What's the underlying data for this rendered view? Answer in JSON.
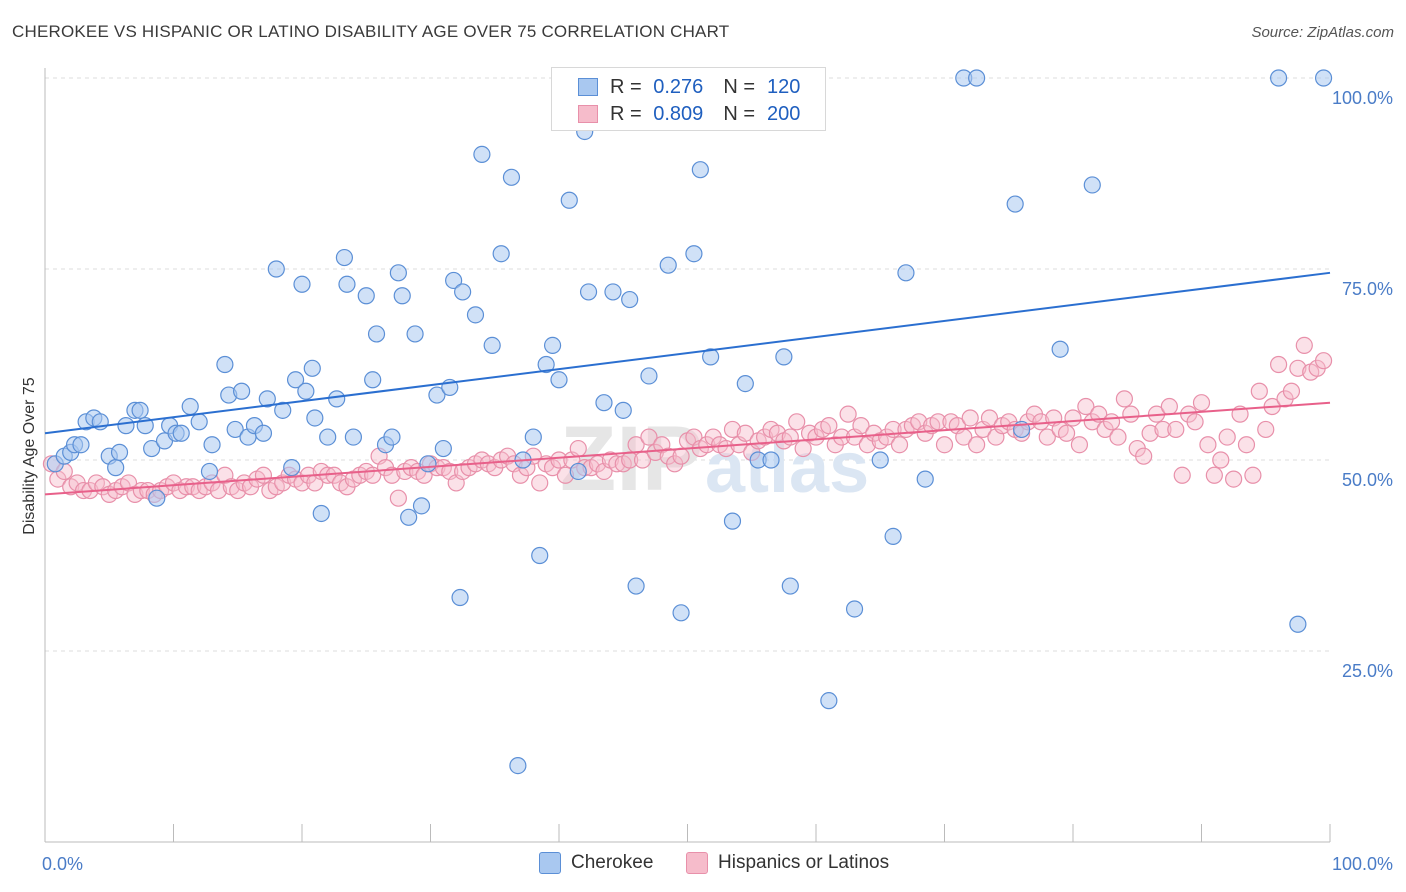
{
  "title": "CHEROKEE VS HISPANIC OR LATINO DISABILITY AGE OVER 75 CORRELATION CHART",
  "source": "Source: ZipAtlas.com",
  "watermark": "ZIPatlas",
  "colors": {
    "cherokee_fill": "#a9c8f0",
    "cherokee_stroke": "#5b8fd6",
    "cherokee_line": "#2b6fd0",
    "hispanic_fill": "#f6bccb",
    "hispanic_stroke": "#e890aa",
    "hispanic_line": "#e8608a",
    "tick_label": "#4a7cc7"
  },
  "legend": {
    "rows": [
      {
        "r_label": "R =",
        "r_value": "0.276",
        "n_label": "N =",
        "n_value": "120"
      },
      {
        "r_label": "R =",
        "r_value": "0.809",
        "n_label": "N =",
        "n_value": "200"
      }
    ]
  },
  "bottom_legend": [
    "Cherokee",
    "Hispanics or Latinos"
  ],
  "chart_data": {
    "type": "scatter",
    "title": "CHEROKEE VS HISPANIC OR LATINO DISABILITY AGE OVER 75 CORRELATION CHART",
    "xlabel": "",
    "ylabel": "Disability Age Over 75",
    "xlim": [
      0,
      100
    ],
    "ylim": [
      0,
      100
    ],
    "x_tick_labels": [
      "0.0%",
      "100.0%"
    ],
    "y_tick_labels": [
      "25.0%",
      "50.0%",
      "75.0%",
      "100.0%"
    ],
    "y_ticks": [
      25,
      50,
      75,
      100
    ],
    "grid": true,
    "legend_position": "top-center",
    "series": [
      {
        "name": "Cherokee",
        "trend": [
          [
            0,
            53.5
          ],
          [
            100,
            74.5
          ]
        ],
        "points": [
          [
            0.8,
            49.5
          ],
          [
            1.5,
            50.5
          ],
          [
            2,
            51
          ],
          [
            2.3,
            52
          ],
          [
            2.8,
            52
          ],
          [
            3.2,
            55
          ],
          [
            3.8,
            55.5
          ],
          [
            4.3,
            55
          ],
          [
            5,
            50.5
          ],
          [
            5.5,
            49
          ],
          [
            5.8,
            51
          ],
          [
            6.3,
            54.5
          ],
          [
            7,
            56.5
          ],
          [
            7.4,
            56.5
          ],
          [
            7.8,
            54.5
          ],
          [
            8.3,
            51.5
          ],
          [
            8.7,
            45
          ],
          [
            9.3,
            52.5
          ],
          [
            9.7,
            54.5
          ],
          [
            10.2,
            53.5
          ],
          [
            10.6,
            53.5
          ],
          [
            11.3,
            57
          ],
          [
            12,
            55
          ],
          [
            12.8,
            48.5
          ],
          [
            13,
            52
          ],
          [
            14,
            62.5
          ],
          [
            14.3,
            58.5
          ],
          [
            14.8,
            54
          ],
          [
            15.3,
            59
          ],
          [
            15.8,
            53
          ],
          [
            16.3,
            54.5
          ],
          [
            17,
            53.5
          ],
          [
            17.3,
            58
          ],
          [
            18,
            75
          ],
          [
            18.5,
            56.5
          ],
          [
            19.2,
            49
          ],
          [
            19.5,
            60.5
          ],
          [
            20,
            73
          ],
          [
            20.3,
            59
          ],
          [
            20.8,
            62
          ],
          [
            21,
            55.5
          ],
          [
            21.5,
            43
          ],
          [
            22,
            53
          ],
          [
            22.7,
            58
          ],
          [
            23.3,
            76.5
          ],
          [
            23.5,
            73
          ],
          [
            24,
            53
          ],
          [
            25,
            71.5
          ],
          [
            25.5,
            60.5
          ],
          [
            25.8,
            66.5
          ],
          [
            26.5,
            52
          ],
          [
            27,
            53
          ],
          [
            27.5,
            74.5
          ],
          [
            27.8,
            71.5
          ],
          [
            28.3,
            42.5
          ],
          [
            28.8,
            66.5
          ],
          [
            29.3,
            44
          ],
          [
            29.8,
            49.5
          ],
          [
            30.5,
            58.5
          ],
          [
            31,
            51.5
          ],
          [
            31.5,
            59.5
          ],
          [
            31.8,
            73.5
          ],
          [
            32.3,
            32
          ],
          [
            32.5,
            72
          ],
          [
            33.5,
            69
          ],
          [
            34,
            90
          ],
          [
            34.8,
            65
          ],
          [
            35.5,
            77
          ],
          [
            36.3,
            87
          ],
          [
            36.8,
            10
          ],
          [
            37.2,
            50
          ],
          [
            38,
            53
          ],
          [
            38.5,
            37.5
          ],
          [
            39,
            62.5
          ],
          [
            39.5,
            65
          ],
          [
            40,
            60.5
          ],
          [
            40.8,
            84
          ],
          [
            41.5,
            48.5
          ],
          [
            42,
            93
          ],
          [
            42.3,
            72
          ],
          [
            43.5,
            57.5
          ],
          [
            44.2,
            72
          ],
          [
            45,
            56.5
          ],
          [
            45.5,
            71
          ],
          [
            46,
            33.5
          ],
          [
            47,
            61
          ],
          [
            48.5,
            75.5
          ],
          [
            49.5,
            30
          ],
          [
            50.5,
            77
          ],
          [
            51,
            88
          ],
          [
            51.8,
            63.5
          ],
          [
            53.5,
            42
          ],
          [
            54.5,
            60
          ],
          [
            55.5,
            50
          ],
          [
            56.5,
            50
          ],
          [
            57.5,
            63.5
          ],
          [
            58,
            33.5
          ],
          [
            60,
            100
          ],
          [
            61,
            18.5
          ],
          [
            63,
            30.5
          ],
          [
            65,
            50
          ],
          [
            66,
            40
          ],
          [
            67,
            74.5
          ],
          [
            68.5,
            47.5
          ],
          [
            71.5,
            100
          ],
          [
            72.5,
            100
          ],
          [
            75.5,
            83.5
          ],
          [
            76,
            54
          ],
          [
            79,
            64.5
          ],
          [
            81.5,
            86
          ],
          [
            96,
            100
          ],
          [
            97.5,
            28.5
          ],
          [
            99.5,
            100
          ]
        ]
      },
      {
        "name": "Hispanics or Latinos",
        "trend": [
          [
            0,
            45.5
          ],
          [
            100,
            57.5
          ]
        ],
        "points": [
          [
            0.5,
            49.5
          ],
          [
            1,
            47.5
          ],
          [
            1.5,
            48.5
          ],
          [
            2,
            46.5
          ],
          [
            2.5,
            47
          ],
          [
            3,
            46
          ],
          [
            3.5,
            46
          ],
          [
            4,
            47
          ],
          [
            4.5,
            46.5
          ],
          [
            5,
            45.5
          ],
          [
            5.5,
            46
          ],
          [
            6,
            46.5
          ],
          [
            6.5,
            47
          ],
          [
            7,
            45.5
          ],
          [
            7.5,
            46
          ],
          [
            8,
            46
          ],
          [
            8.5,
            45.5
          ],
          [
            9,
            46
          ],
          [
            9.5,
            46.5
          ],
          [
            10,
            47
          ],
          [
            10.5,
            46
          ],
          [
            11,
            46.5
          ],
          [
            11.5,
            46.5
          ],
          [
            12,
            46
          ],
          [
            12.5,
            46.5
          ],
          [
            13,
            47
          ],
          [
            13.5,
            46
          ],
          [
            14,
            48
          ],
          [
            14.5,
            46.5
          ],
          [
            15,
            46
          ],
          [
            15.5,
            47
          ],
          [
            16,
            46.5
          ],
          [
            16.5,
            47.5
          ],
          [
            17,
            48
          ],
          [
            17.5,
            46
          ],
          [
            18,
            46.5
          ],
          [
            18.5,
            47
          ],
          [
            19,
            48
          ],
          [
            19.5,
            47.5
          ],
          [
            20,
            47
          ],
          [
            20.5,
            48
          ],
          [
            21,
            47
          ],
          [
            21.5,
            48.5
          ],
          [
            22,
            48
          ],
          [
            22.5,
            48
          ],
          [
            23,
            47
          ],
          [
            23.5,
            46.5
          ],
          [
            24,
            47.5
          ],
          [
            24.5,
            48
          ],
          [
            25,
            48.5
          ],
          [
            25.5,
            48
          ],
          [
            26,
            50.5
          ],
          [
            26.5,
            49
          ],
          [
            27,
            48
          ],
          [
            27.5,
            45
          ],
          [
            28,
            48.5
          ],
          [
            28.5,
            49
          ],
          [
            29,
            48.5
          ],
          [
            29.5,
            48
          ],
          [
            30,
            49.5
          ],
          [
            30.5,
            49
          ],
          [
            31,
            49
          ],
          [
            31.5,
            48.5
          ],
          [
            32,
            47
          ],
          [
            32.5,
            48.5
          ],
          [
            33,
            49
          ],
          [
            33.5,
            49.5
          ],
          [
            34,
            50
          ],
          [
            34.5,
            49.5
          ],
          [
            35,
            49
          ],
          [
            35.5,
            50
          ],
          [
            36,
            50.5
          ],
          [
            36.5,
            49.5
          ],
          [
            37,
            48
          ],
          [
            37.5,
            49
          ],
          [
            38,
            50.5
          ],
          [
            38.5,
            47
          ],
          [
            39,
            49.5
          ],
          [
            39.5,
            49
          ],
          [
            40,
            50
          ],
          [
            40.5,
            48
          ],
          [
            41,
            50
          ],
          [
            41.5,
            51.5
          ],
          [
            42,
            49
          ],
          [
            42.5,
            49
          ],
          [
            43,
            49.5
          ],
          [
            43.5,
            48.5
          ],
          [
            44,
            50
          ],
          [
            44.5,
            49.5
          ],
          [
            45,
            49.5
          ],
          [
            45.5,
            50
          ],
          [
            46,
            52
          ],
          [
            46.5,
            50
          ],
          [
            47,
            53
          ],
          [
            47.5,
            51
          ],
          [
            48,
            52
          ],
          [
            48.5,
            50.5
          ],
          [
            49,
            49.5
          ],
          [
            49.5,
            50.5
          ],
          [
            50,
            52.5
          ],
          [
            50.5,
            53
          ],
          [
            51,
            51.5
          ],
          [
            51.5,
            52
          ],
          [
            52,
            53
          ],
          [
            52.5,
            52
          ],
          [
            53,
            51.5
          ],
          [
            53.5,
            54
          ],
          [
            54,
            52
          ],
          [
            54.5,
            53.5
          ],
          [
            55,
            51
          ],
          [
            55.5,
            52.5
          ],
          [
            56,
            53
          ],
          [
            56.5,
            54
          ],
          [
            57,
            53.5
          ],
          [
            57.5,
            52.5
          ],
          [
            58,
            53
          ],
          [
            58.5,
            55
          ],
          [
            59,
            51.5
          ],
          [
            59.5,
            53.5
          ],
          [
            60,
            53
          ],
          [
            60.5,
            54
          ],
          [
            61,
            54.5
          ],
          [
            61.5,
            52
          ],
          [
            62,
            53
          ],
          [
            62.5,
            56
          ],
          [
            63,
            53
          ],
          [
            63.5,
            54.5
          ],
          [
            64,
            52
          ],
          [
            64.5,
            53.5
          ],
          [
            65,
            52.5
          ],
          [
            65.5,
            53
          ],
          [
            66,
            54
          ],
          [
            66.5,
            52
          ],
          [
            67,
            54
          ],
          [
            67.5,
            54.5
          ],
          [
            68,
            55
          ],
          [
            68.5,
            53.5
          ],
          [
            69,
            54.5
          ],
          [
            69.5,
            55
          ],
          [
            70,
            52
          ],
          [
            70.5,
            55
          ],
          [
            71,
            54.5
          ],
          [
            71.5,
            53
          ],
          [
            72,
            55.5
          ],
          [
            72.5,
            52
          ],
          [
            73,
            54
          ],
          [
            73.5,
            55.5
          ],
          [
            74,
            53
          ],
          [
            74.5,
            54.5
          ],
          [
            75,
            55
          ],
          [
            75.5,
            54
          ],
          [
            76,
            53.5
          ],
          [
            76.5,
            55
          ],
          [
            77,
            56
          ],
          [
            77.5,
            55
          ],
          [
            78,
            53
          ],
          [
            78.5,
            55.5
          ],
          [
            79,
            54
          ],
          [
            79.5,
            53.5
          ],
          [
            80,
            55.5
          ],
          [
            80.5,
            52
          ],
          [
            81,
            57
          ],
          [
            81.5,
            55
          ],
          [
            82,
            56
          ],
          [
            82.5,
            54
          ],
          [
            83,
            55
          ],
          [
            83.5,
            53
          ],
          [
            84,
            58
          ],
          [
            84.5,
            56
          ],
          [
            85,
            51.5
          ],
          [
            85.5,
            50.5
          ],
          [
            86,
            53.5
          ],
          [
            86.5,
            56
          ],
          [
            87,
            54
          ],
          [
            87.5,
            57
          ],
          [
            88,
            54
          ],
          [
            88.5,
            48
          ],
          [
            89,
            56
          ],
          [
            89.5,
            55
          ],
          [
            90,
            57.5
          ],
          [
            90.5,
            52
          ],
          [
            91,
            48
          ],
          [
            91.5,
            50
          ],
          [
            92,
            53
          ],
          [
            92.5,
            47.5
          ],
          [
            93,
            56
          ],
          [
            93.5,
            52
          ],
          [
            94,
            48
          ],
          [
            94.5,
            59
          ],
          [
            95,
            54
          ],
          [
            95.5,
            57
          ],
          [
            96,
            62.5
          ],
          [
            96.5,
            58
          ],
          [
            97,
            59
          ],
          [
            97.5,
            62
          ],
          [
            98,
            65
          ],
          [
            98.5,
            61.5
          ],
          [
            99,
            62
          ],
          [
            99.5,
            63
          ]
        ]
      }
    ]
  }
}
